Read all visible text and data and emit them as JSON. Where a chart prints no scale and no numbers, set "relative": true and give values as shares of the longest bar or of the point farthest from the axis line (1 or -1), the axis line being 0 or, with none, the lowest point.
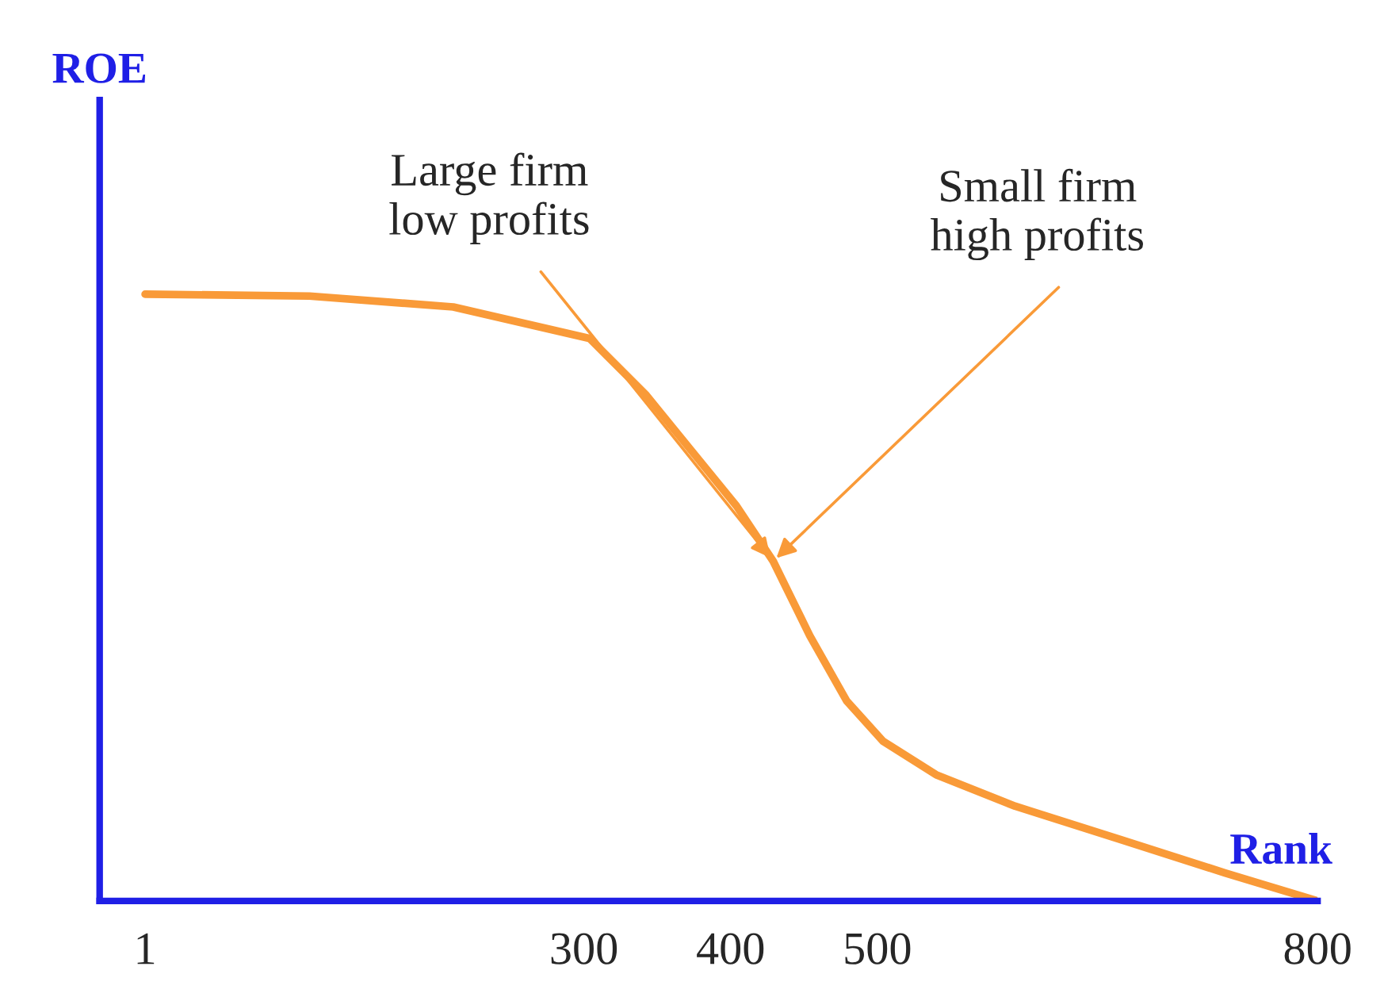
{
  "chart_data": {
    "type": "line",
    "relative": true,
    "xlabel": "Rank",
    "ylabel": "ROE",
    "x": [
      1,
      113,
      211,
      304,
      342,
      373,
      404,
      429,
      454,
      479,
      504,
      540,
      594,
      666,
      737,
      800
    ],
    "series": [
      {
        "color": "#f99a38",
        "values": [
          1.0,
          0.997,
          0.979,
          0.927,
          0.835,
          0.743,
          0.651,
          0.56,
          0.437,
          0.33,
          0.263,
          0.208,
          0.156,
          0.101,
          0.046,
          0.0
        ]
      }
    ],
    "xlim": [
      -30,
      800
    ],
    "xticks": [
      1,
      300,
      400,
      500,
      800
    ],
    "annotations": [
      {
        "text": "Large firm\nlow profits",
        "x": 429,
        "y": 0.56
      },
      {
        "text": "Small firm\nhigh profits",
        "x": 429,
        "y": 0.56
      }
    ],
    "grid": false,
    "legend": false,
    "marker": "none",
    "line_style": "solid"
  }
}
